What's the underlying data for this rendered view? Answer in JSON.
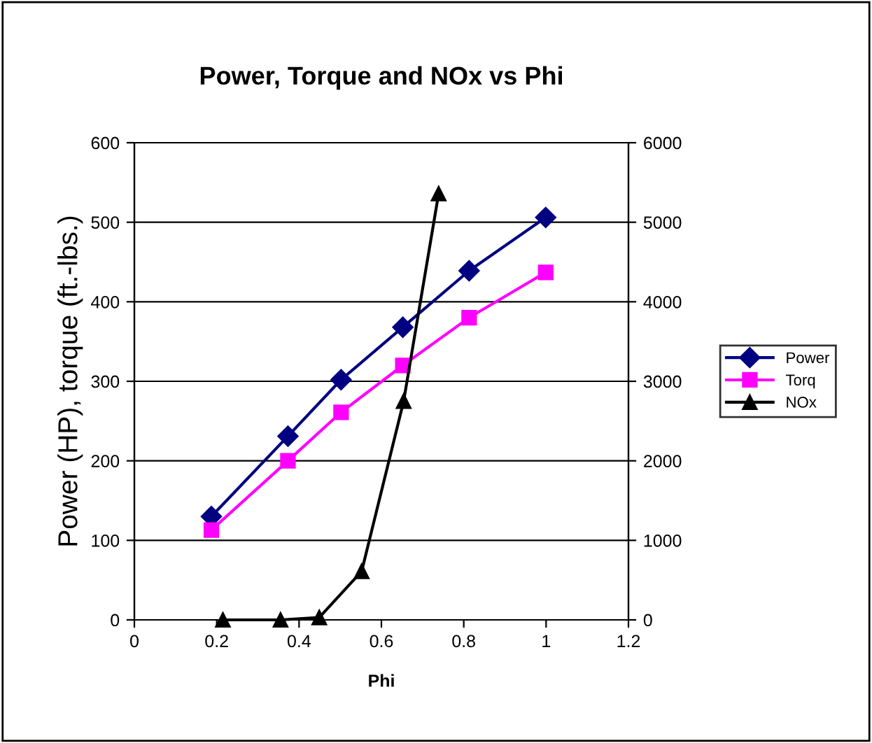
{
  "chart_data": {
    "type": "line",
    "title": "Power, Torque and NOx vs Phi",
    "xlabel": "Phi",
    "ylabel": "Power (HP), torque (ft.-lbs.)",
    "xlim": [
      0,
      1.2
    ],
    "xticks": [
      0,
      0.2,
      0.4,
      0.6,
      0.8,
      1,
      1.2
    ],
    "ylim": [
      0,
      600
    ],
    "yticks": [
      0,
      100,
      200,
      300,
      400,
      500,
      600
    ],
    "y2lim": [
      0,
      6000
    ],
    "y2ticks": [
      0,
      1000,
      2000,
      3000,
      4000,
      5000,
      6000
    ],
    "grid": "y",
    "legend": "right",
    "line_style": "solid",
    "series": [
      {
        "name": "Power",
        "color": "#000080",
        "marker": "diamond",
        "x": [
          0.187,
          0.373,
          0.502,
          0.652,
          0.813,
          0.999
        ],
        "values": [
          130,
          231,
          302,
          368,
          439,
          506
        ]
      },
      {
        "name": "Torq",
        "color": "#ff00ff",
        "marker": "square",
        "x": [
          0.187,
          0.373,
          0.502,
          0.652,
          0.813,
          0.999
        ],
        "values": [
          113,
          200,
          261,
          320,
          380,
          437
        ]
      },
      {
        "name": "NOx",
        "color": "#000000",
        "marker": "triangle",
        "axis": "y2",
        "x": [
          0.215,
          0.355,
          0.449,
          0.552,
          0.654,
          0.739
        ],
        "values": [
          0,
          0,
          30,
          610,
          2750,
          5360
        ]
      }
    ]
  }
}
